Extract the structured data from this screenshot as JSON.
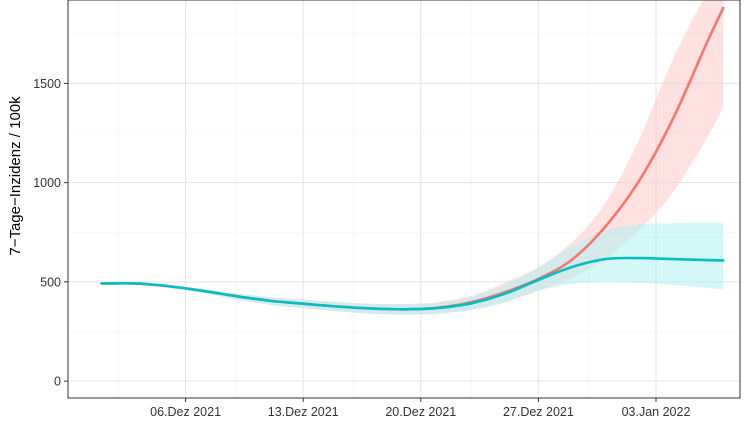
{
  "chart_data": {
    "type": "line",
    "title": "",
    "xlabel": "",
    "ylabel": "7−Tage−Inzidenz / 100k",
    "x_ticks": [
      {
        "date": "2021-12-06",
        "label": "06.Dez 2021"
      },
      {
        "date": "2021-12-13",
        "label": "13.Dez 2021"
      },
      {
        "date": "2021-12-20",
        "label": "20.Dez 2021"
      },
      {
        "date": "2021-12-27",
        "label": "27.Dez 2021"
      },
      {
        "date": "2022-01-03",
        "label": "03.Jan 2022"
      }
    ],
    "y_ticks": [
      0,
      500,
      1000,
      1500
    ],
    "xlim": [
      "2021-11-29",
      "2022-01-08"
    ],
    "ylim": [
      -85,
      1920
    ],
    "grid": true,
    "legend": "none",
    "series": [
      {
        "color": "#F8766D",
        "band_color": "#FFC8C8",
        "x": [
          "2021-12-01",
          "2021-12-03",
          "2021-12-05",
          "2021-12-07",
          "2021-12-09",
          "2021-12-11",
          "2021-12-13",
          "2021-12-15",
          "2021-12-17",
          "2021-12-19",
          "2021-12-21",
          "2021-12-23",
          "2021-12-25",
          "2021-12-27",
          "2021-12-29",
          "2021-12-31",
          "2022-01-02",
          "2022-01-04",
          "2022-01-06",
          "2022-01-07"
        ],
        "values": [
          492,
          492,
          478,
          455,
          428,
          405,
          390,
          376,
          366,
          362,
          370,
          398,
          448,
          515,
          612,
          780,
          1010,
          1320,
          1700,
          1880
        ],
        "lower": [
          492,
          488,
          470,
          445,
          412,
          385,
          368,
          352,
          340,
          335,
          340,
          360,
          400,
          455,
          520,
          620,
          760,
          950,
          1220,
          1380
        ],
        "upper": [
          494,
          495,
          485,
          465,
          442,
          423,
          410,
          398,
          390,
          388,
          398,
          430,
          495,
          575,
          700,
          900,
          1220,
          1620,
          1950,
          2050
        ]
      },
      {
        "color": "#00BFC4",
        "band_color": "#B0F0F0",
        "x": [
          "2021-12-01",
          "2021-12-03",
          "2021-12-05",
          "2021-12-07",
          "2021-12-09",
          "2021-12-11",
          "2021-12-13",
          "2021-12-15",
          "2021-12-17",
          "2021-12-19",
          "2021-12-21",
          "2021-12-23",
          "2021-12-25",
          "2021-12-27",
          "2021-12-29",
          "2021-12-31",
          "2022-01-02",
          "2022-01-04",
          "2022-01-06",
          "2022-01-07"
        ],
        "values": [
          492,
          492,
          478,
          455,
          428,
          405,
          390,
          376,
          366,
          362,
          368,
          392,
          440,
          510,
          575,
          615,
          620,
          615,
          610,
          608
        ],
        "lower": [
          492,
          488,
          470,
          445,
          412,
          385,
          368,
          352,
          340,
          335,
          340,
          358,
          395,
          455,
          490,
          500,
          495,
          485,
          470,
          462
        ],
        "upper": [
          494,
          495,
          485,
          465,
          442,
          423,
          410,
          398,
          390,
          388,
          395,
          425,
          485,
          570,
          680,
          760,
          790,
          795,
          798,
          800
        ]
      }
    ]
  }
}
